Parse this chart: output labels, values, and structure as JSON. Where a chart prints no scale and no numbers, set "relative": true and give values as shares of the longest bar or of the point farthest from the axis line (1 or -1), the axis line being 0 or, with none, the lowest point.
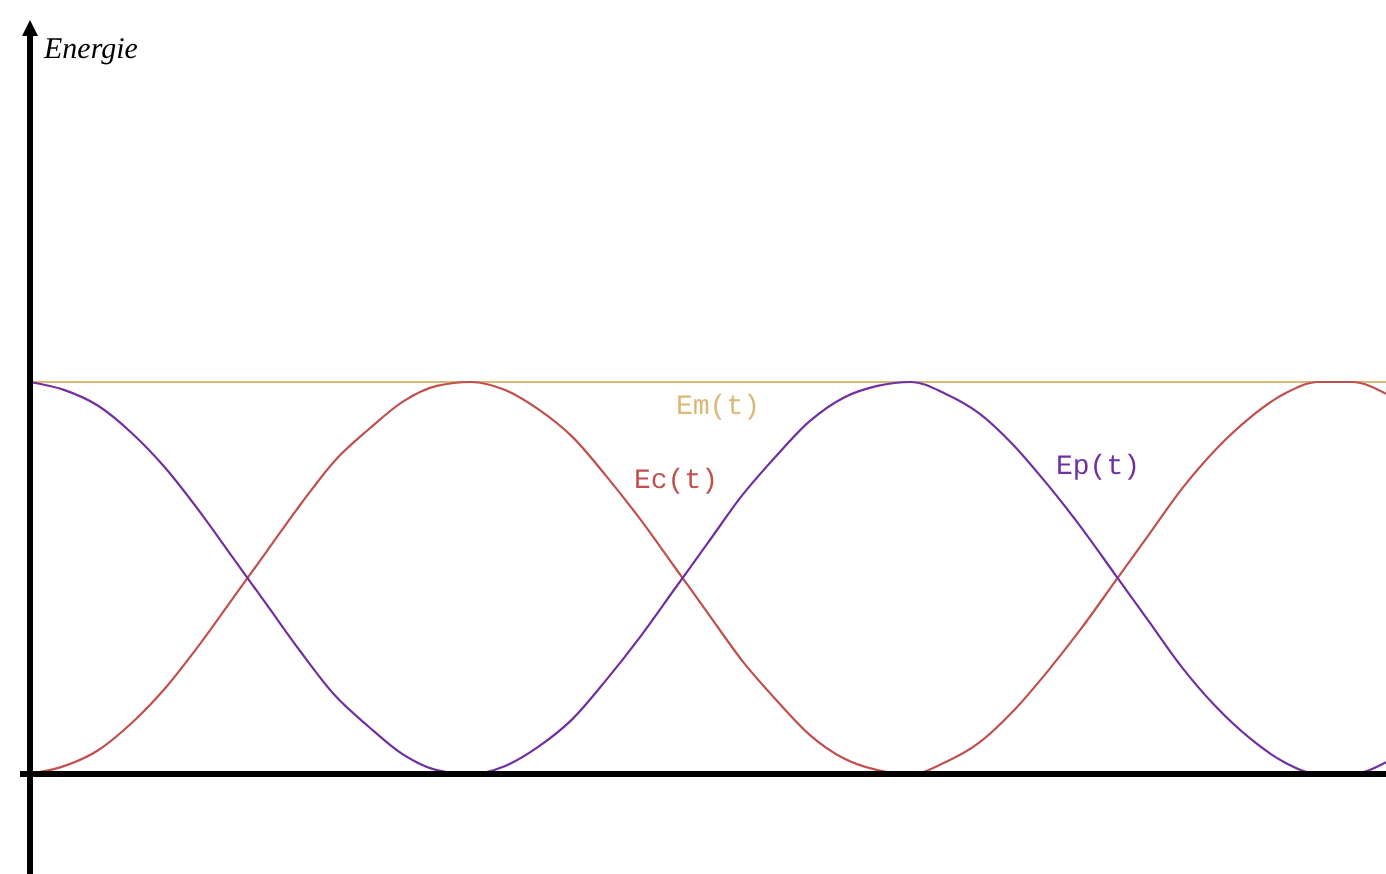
{
  "chart_data": {
    "type": "line",
    "annotations": [
      "Energie"
    ],
    "relative": true,
    "marker": "none",
    "line_style": "solid",
    "categories": [
      null,
      null,
      null,
      null,
      null,
      null,
      null,
      null,
      null,
      null,
      null,
      null,
      null,
      null,
      null,
      null,
      null,
      null,
      null,
      null,
      null,
      null,
      null,
      null,
      null,
      null,
      null,
      null,
      null,
      null,
      null,
      null,
      null,
      null,
      null,
      null,
      null,
      null,
      null,
      null,
      null
    ],
    "series": [
      {
        "name": "Em(t)",
        "color": "#dcb878",
        "values": [
          1,
          1,
          1,
          1,
          1,
          1,
          1,
          1,
          1,
          1,
          1,
          1,
          1,
          1,
          1,
          1,
          1,
          1,
          1,
          1,
          1,
          1,
          1,
          1,
          1,
          1,
          1,
          1,
          1,
          1,
          1,
          1,
          1,
          1,
          1,
          1,
          1,
          1,
          1,
          1,
          1
        ]
      },
      {
        "name": "Ec(t)",
        "color": "#c0504d",
        "values": [
          0,
          0.02,
          0.06,
          0.13,
          0.22,
          0.33,
          0.45,
          0.57,
          0.69,
          0.8,
          0.88,
          0.95,
          0.99,
          1,
          0.98,
          0.93,
          0.86,
          0.76,
          0.65,
          0.53,
          0.41,
          0.29,
          0.19,
          0.1,
          0.04,
          0.01,
          0,
          0.03,
          0.08,
          0.16,
          0.26,
          0.37,
          0.49,
          0.61,
          0.73,
          0.83,
          0.91,
          0.97,
          1,
          1,
          0.97
        ]
      },
      {
        "name": "Ep(t)",
        "color": "#7030a0",
        "values": [
          1,
          0.98,
          0.94,
          0.87,
          0.78,
          0.67,
          0.55,
          0.43,
          0.31,
          0.2,
          0.12,
          0.05,
          0.01,
          0,
          0.02,
          0.07,
          0.14,
          0.24,
          0.35,
          0.47,
          0.59,
          0.71,
          0.81,
          0.9,
          0.96,
          0.99,
          1,
          0.97,
          0.92,
          0.84,
          0.74,
          0.63,
          0.51,
          0.39,
          0.27,
          0.17,
          0.09,
          0.03,
          0,
          0,
          0.03
        ]
      }
    ]
  }
}
